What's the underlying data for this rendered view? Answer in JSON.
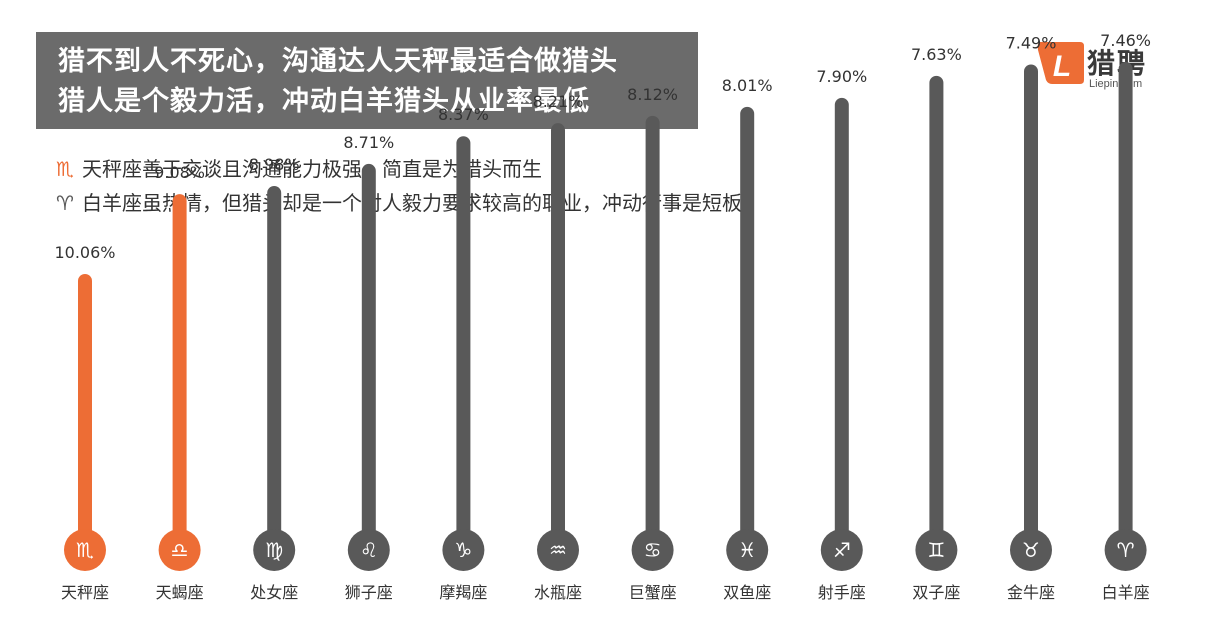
{
  "headline": {
    "line1": "猎不到人不死心，沟通达人天秤最适合做猎头",
    "line2": "猎人是个毅力活，冲动白羊猎头从业率最低"
  },
  "logo": {
    "name_cn": "猎聘",
    "name_en": "Liepin.com",
    "mark_letter": "L"
  },
  "notes": [
    {
      "icon": "♏",
      "text": "天秤座善于交谈且沟通能力极强，简直是为猎头而生"
    },
    {
      "icon": "♈",
      "text": "白羊座虽热情，但猎头却是一个对人毅力要求较高的职业，冲动行事是短板"
    }
  ],
  "colors": {
    "highlight": "#ed6d35",
    "bar": "#595959",
    "headline_bg": "#6b6b6b"
  },
  "chart_data": {
    "type": "bar",
    "categories": [
      "天秤座",
      "天蝎座",
      "处女座",
      "狮子座",
      "摩羯座",
      "水瓶座",
      "巨蟹座",
      "双鱼座",
      "射手座",
      "双子座",
      "金牛座",
      "白羊座"
    ],
    "values": [
      10.06,
      9.08,
      8.98,
      8.71,
      8.37,
      8.21,
      8.12,
      8.01,
      7.9,
      7.63,
      7.49,
      7.46
    ],
    "value_labels": [
      "10.06%",
      "9.08%",
      "8.98%",
      "8.71%",
      "8.37%",
      "8.21%",
      "8.12%",
      "8.01%",
      "7.90%",
      "7.63%",
      "7.49%",
      "7.46%"
    ],
    "signs": [
      "♏",
      "♎",
      "♍",
      "♌",
      "♑",
      "♒",
      "♋",
      "♓",
      "♐",
      "♊",
      "♉",
      "♈"
    ],
    "highlighted": [
      true,
      true,
      false,
      false,
      false,
      false,
      false,
      false,
      false,
      false,
      false,
      false
    ],
    "unit": "%"
  }
}
